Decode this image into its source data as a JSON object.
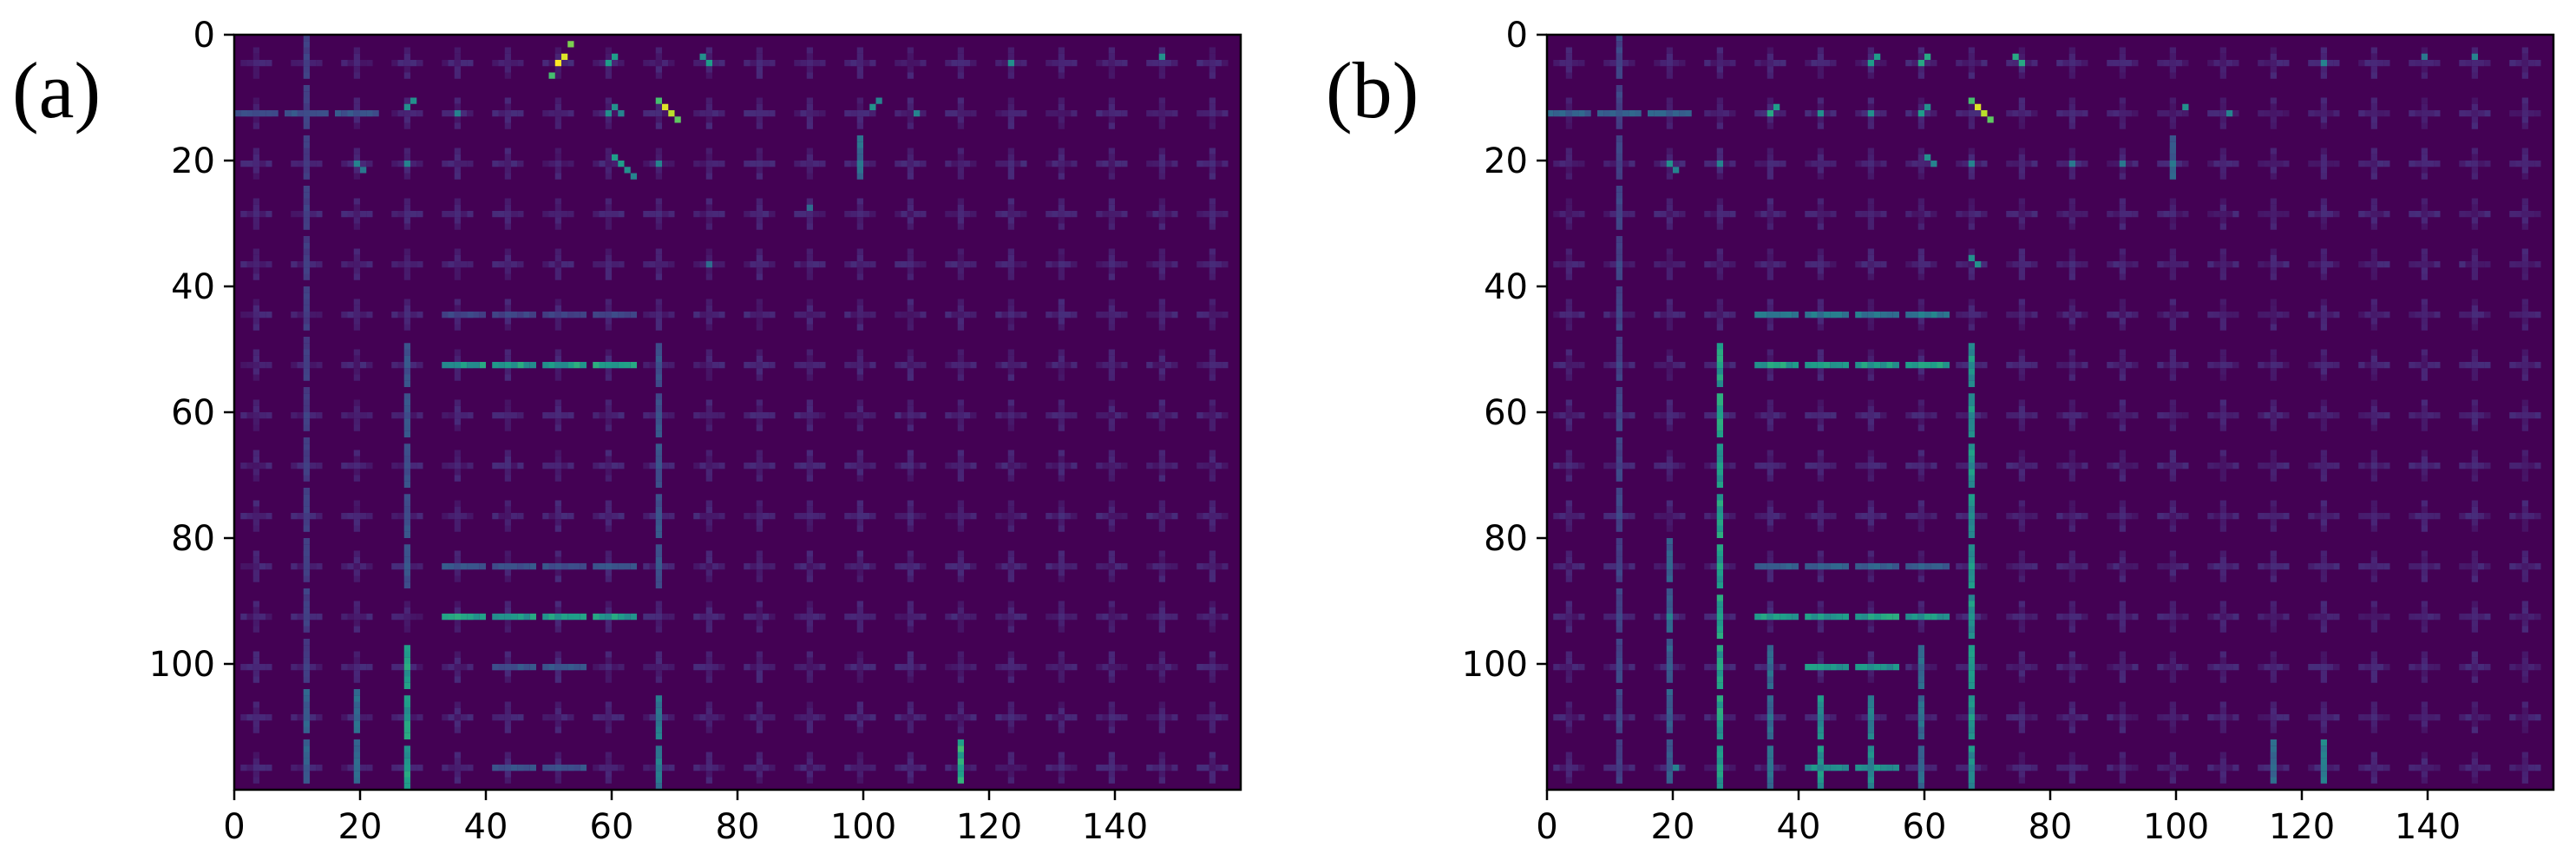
{
  "chart_data": [
    {
      "type": "heatmap",
      "panel_label": "(a)",
      "xlim": [
        0,
        160
      ],
      "ylim": [
        120,
        0
      ],
      "x_ticks": [
        0,
        20,
        40,
        60,
        80,
        100,
        120,
        140
      ],
      "y_ticks": [
        0,
        20,
        40,
        60,
        80,
        100
      ],
      "colormap": "viridis",
      "background_color": "#440154",
      "grid_period": 8,
      "segments": [
        {
          "o": "h",
          "x": 33,
          "y": 52,
          "len": 31,
          "v": 0.55
        },
        {
          "o": "h",
          "x": 33,
          "y": 92,
          "len": 31,
          "v": 0.55
        },
        {
          "o": "h",
          "x": 33,
          "y": 84,
          "len": 31,
          "v": 0.25
        },
        {
          "o": "h",
          "x": 33,
          "y": 44,
          "len": 31,
          "v": 0.2
        },
        {
          "o": "h",
          "x": 41,
          "y": 100,
          "len": 15,
          "v": 0.25
        },
        {
          "o": "h",
          "x": 41,
          "y": 116,
          "len": 15,
          "v": 0.25
        },
        {
          "o": "v",
          "x": 27,
          "y": 49,
          "len": 39,
          "v": 0.25
        },
        {
          "o": "v",
          "x": 67,
          "y": 49,
          "len": 39,
          "v": 0.25
        },
        {
          "o": "v",
          "x": 27,
          "y": 97,
          "len": 23,
          "v": 0.55
        },
        {
          "o": "v",
          "x": 67,
          "y": 105,
          "len": 15,
          "v": 0.4
        },
        {
          "o": "v",
          "x": 11,
          "y": 0,
          "len": 120,
          "v": 0.18
        },
        {
          "o": "v",
          "x": 19,
          "y": 104,
          "len": 16,
          "v": 0.35
        },
        {
          "o": "v",
          "x": 11,
          "y": 104,
          "len": 16,
          "v": 0.3
        },
        {
          "o": "v",
          "x": 115,
          "y": 112,
          "len": 7,
          "v": 0.6
        },
        {
          "o": "h",
          "x": 0,
          "y": 12,
          "len": 24,
          "v": 0.25
        },
        {
          "o": "v",
          "x": 99,
          "y": 16,
          "len": 8,
          "v": 0.35
        }
      ],
      "hotspots": [
        {
          "x": 51,
          "y": 4,
          "v": 1.0
        },
        {
          "x": 52,
          "y": 3,
          "v": 0.95
        },
        {
          "x": 53,
          "y": 1,
          "v": 0.8
        },
        {
          "x": 50,
          "y": 6,
          "v": 0.7
        },
        {
          "x": 68,
          "y": 11,
          "v": 0.95
        },
        {
          "x": 69,
          "y": 12,
          "v": 0.9
        },
        {
          "x": 70,
          "y": 13,
          "v": 0.75
        },
        {
          "x": 67,
          "y": 10,
          "v": 0.7
        },
        {
          "x": 59,
          "y": 4,
          "v": 0.55
        },
        {
          "x": 60,
          "y": 3,
          "v": 0.55
        },
        {
          "x": 74,
          "y": 3,
          "v": 0.5
        },
        {
          "x": 75,
          "y": 4,
          "v": 0.55
        },
        {
          "x": 123,
          "y": 4,
          "v": 0.5
        },
        {
          "x": 147,
          "y": 3,
          "v": 0.5
        },
        {
          "x": 27,
          "y": 11,
          "v": 0.5
        },
        {
          "x": 28,
          "y": 10,
          "v": 0.5
        },
        {
          "x": 35,
          "y": 12,
          "v": 0.45
        },
        {
          "x": 59,
          "y": 12,
          "v": 0.5
        },
        {
          "x": 60,
          "y": 11,
          "v": 0.5
        },
        {
          "x": 61,
          "y": 12,
          "v": 0.45
        },
        {
          "x": 101,
          "y": 11,
          "v": 0.5
        },
        {
          "x": 102,
          "y": 10,
          "v": 0.45
        },
        {
          "x": 108,
          "y": 12,
          "v": 0.45
        },
        {
          "x": 19,
          "y": 20,
          "v": 0.45
        },
        {
          "x": 20,
          "y": 21,
          "v": 0.4
        },
        {
          "x": 27,
          "y": 20,
          "v": 0.45
        },
        {
          "x": 60,
          "y": 19,
          "v": 0.55
        },
        {
          "x": 61,
          "y": 20,
          "v": 0.55
        },
        {
          "x": 62,
          "y": 21,
          "v": 0.5
        },
        {
          "x": 63,
          "y": 22,
          "v": 0.45
        },
        {
          "x": 67,
          "y": 20,
          "v": 0.45
        },
        {
          "x": 99,
          "y": 20,
          "v": 0.4
        },
        {
          "x": 75,
          "y": 36,
          "v": 0.35
        },
        {
          "x": 91,
          "y": 27,
          "v": 0.35
        }
      ]
    },
    {
      "type": "heatmap",
      "panel_label": "(b)",
      "xlim": [
        0,
        160
      ],
      "ylim": [
        120,
        0
      ],
      "x_ticks": [
        0,
        20,
        40,
        60,
        80,
        100,
        120,
        140
      ],
      "y_ticks": [
        0,
        20,
        40,
        60,
        80,
        100
      ],
      "colormap": "viridis",
      "background_color": "#440154",
      "grid_period": 8,
      "segments": [
        {
          "o": "h",
          "x": 33,
          "y": 52,
          "len": 31,
          "v": 0.55
        },
        {
          "o": "h",
          "x": 33,
          "y": 92,
          "len": 31,
          "v": 0.55
        },
        {
          "o": "h",
          "x": 33,
          "y": 44,
          "len": 31,
          "v": 0.4
        },
        {
          "o": "h",
          "x": 33,
          "y": 84,
          "len": 31,
          "v": 0.3
        },
        {
          "o": "h",
          "x": 41,
          "y": 100,
          "len": 15,
          "v": 0.5
        },
        {
          "o": "h",
          "x": 41,
          "y": 116,
          "len": 15,
          "v": 0.5
        },
        {
          "o": "v",
          "x": 27,
          "y": 49,
          "len": 71,
          "v": 0.55
        },
        {
          "o": "v",
          "x": 67,
          "y": 49,
          "len": 71,
          "v": 0.5
        },
        {
          "o": "v",
          "x": 43,
          "y": 105,
          "len": 15,
          "v": 0.5
        },
        {
          "o": "v",
          "x": 51,
          "y": 105,
          "len": 15,
          "v": 0.45
        },
        {
          "o": "v",
          "x": 35,
          "y": 97,
          "len": 23,
          "v": 0.35
        },
        {
          "o": "v",
          "x": 59,
          "y": 97,
          "len": 23,
          "v": 0.35
        },
        {
          "o": "v",
          "x": 11,
          "y": 0,
          "len": 120,
          "v": 0.2
        },
        {
          "o": "v",
          "x": 19,
          "y": 80,
          "len": 40,
          "v": 0.3
        },
        {
          "o": "v",
          "x": 115,
          "y": 112,
          "len": 7,
          "v": 0.35
        },
        {
          "o": "v",
          "x": 123,
          "y": 112,
          "len": 7,
          "v": 0.45
        },
        {
          "o": "h",
          "x": 0,
          "y": 12,
          "len": 24,
          "v": 0.3
        },
        {
          "o": "v",
          "x": 99,
          "y": 16,
          "len": 8,
          "v": 0.3
        }
      ],
      "hotspots": [
        {
          "x": 51,
          "y": 4,
          "v": 0.55
        },
        {
          "x": 52,
          "y": 3,
          "v": 0.55
        },
        {
          "x": 59,
          "y": 4,
          "v": 0.6
        },
        {
          "x": 60,
          "y": 3,
          "v": 0.6
        },
        {
          "x": 68,
          "y": 11,
          "v": 0.95
        },
        {
          "x": 69,
          "y": 12,
          "v": 0.9
        },
        {
          "x": 70,
          "y": 13,
          "v": 0.75
        },
        {
          "x": 67,
          "y": 10,
          "v": 0.7
        },
        {
          "x": 74,
          "y": 3,
          "v": 0.6
        },
        {
          "x": 75,
          "y": 4,
          "v": 0.6
        },
        {
          "x": 123,
          "y": 4,
          "v": 0.45
        },
        {
          "x": 139,
          "y": 3,
          "v": 0.4
        },
        {
          "x": 147,
          "y": 3,
          "v": 0.45
        },
        {
          "x": 35,
          "y": 12,
          "v": 0.6
        },
        {
          "x": 36,
          "y": 11,
          "v": 0.55
        },
        {
          "x": 43,
          "y": 12,
          "v": 0.5
        },
        {
          "x": 51,
          "y": 12,
          "v": 0.5
        },
        {
          "x": 59,
          "y": 12,
          "v": 0.55
        },
        {
          "x": 60,
          "y": 11,
          "v": 0.5
        },
        {
          "x": 101,
          "y": 11,
          "v": 0.5
        },
        {
          "x": 108,
          "y": 12,
          "v": 0.45
        },
        {
          "x": 19,
          "y": 20,
          "v": 0.5
        },
        {
          "x": 20,
          "y": 21,
          "v": 0.45
        },
        {
          "x": 27,
          "y": 20,
          "v": 0.45
        },
        {
          "x": 60,
          "y": 19,
          "v": 0.5
        },
        {
          "x": 61,
          "y": 20,
          "v": 0.45
        },
        {
          "x": 67,
          "y": 20,
          "v": 0.45
        },
        {
          "x": 83,
          "y": 20,
          "v": 0.4
        },
        {
          "x": 91,
          "y": 20,
          "v": 0.4
        },
        {
          "x": 99,
          "y": 20,
          "v": 0.4
        },
        {
          "x": 67,
          "y": 35,
          "v": 0.5
        },
        {
          "x": 68,
          "y": 36,
          "v": 0.5
        },
        {
          "x": 19,
          "y": 92,
          "v": 0.45
        },
        {
          "x": 20,
          "y": 116,
          "v": 0.45
        }
      ]
    }
  ]
}
